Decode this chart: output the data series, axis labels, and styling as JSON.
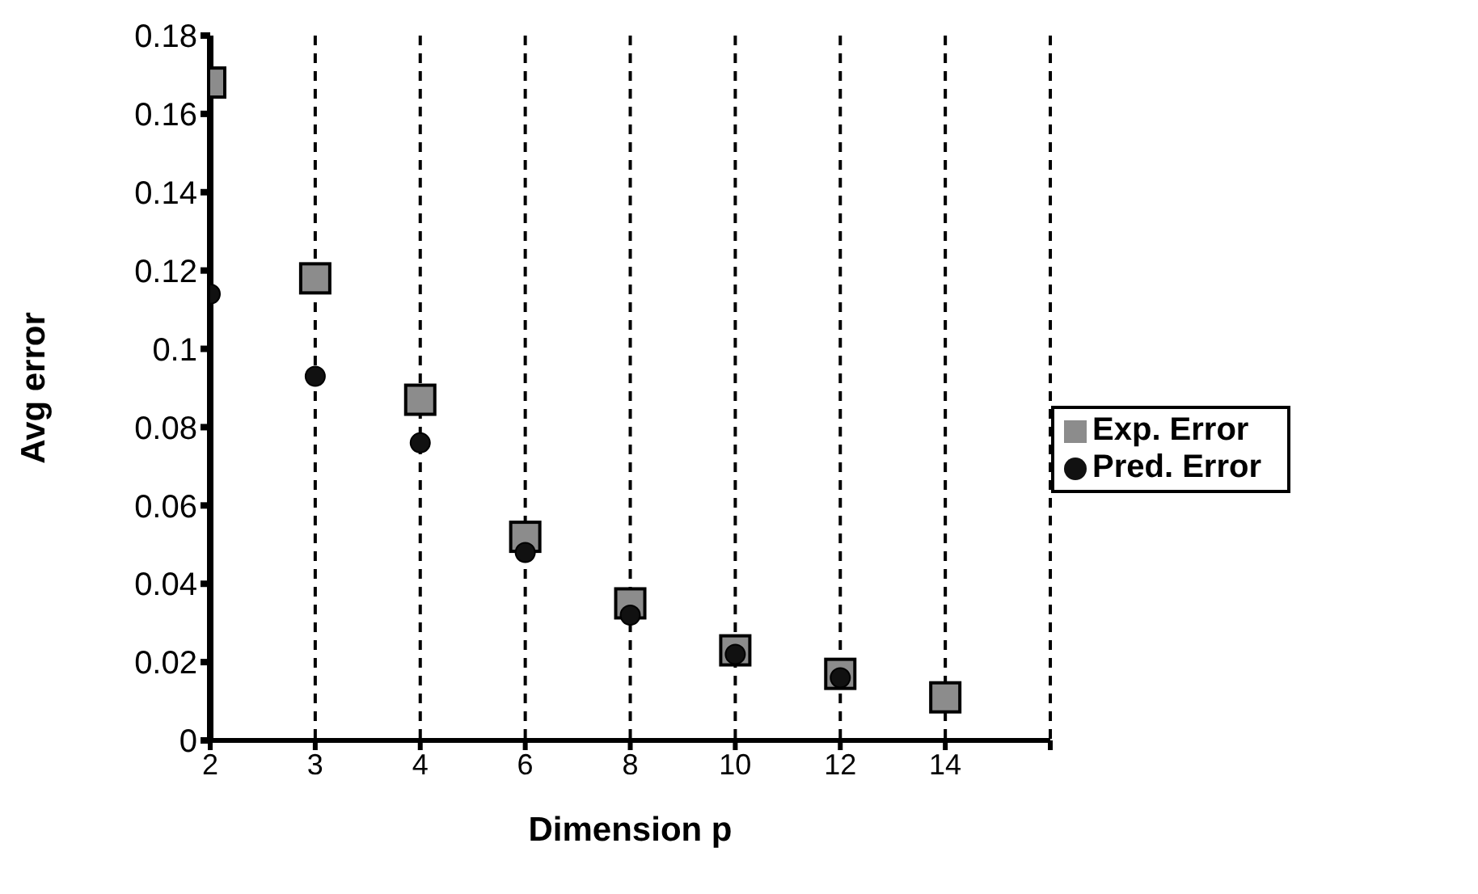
{
  "chart_data": {
    "type": "scatter",
    "xlabel": "Dimension p",
    "ylabel": "Avg error",
    "categories": [
      "2",
      "3",
      "4",
      "6",
      "8",
      "10",
      "12",
      "14",
      null
    ],
    "series": [
      {
        "name": "Exp. Error",
        "color": "#8c8c8c",
        "marker": "square",
        "values": [
          0.168,
          0.118,
          0.087,
          0.052,
          0.035,
          0.023,
          0.017,
          0.011,
          null
        ]
      },
      {
        "name": "Pred. Error",
        "color": "#111111",
        "marker": "circle",
        "values": [
          0.114,
          0.093,
          0.076,
          0.048,
          0.032,
          0.022,
          0.016,
          null,
          null
        ]
      }
    ],
    "ylim": [
      0,
      0.18
    ],
    "yticks": [
      0,
      0.02,
      0.04,
      0.06,
      0.08,
      0.1,
      0.12,
      0.14,
      0.16,
      0.18
    ],
    "grid": "x",
    "line_style": "dashed",
    "legend": "right"
  }
}
